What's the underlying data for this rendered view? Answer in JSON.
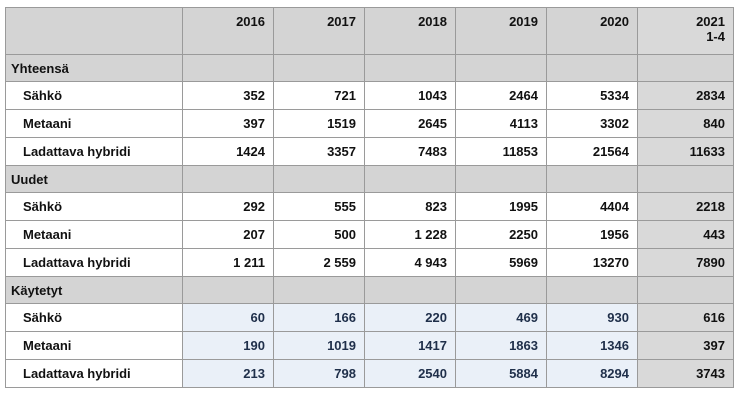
{
  "header": {
    "years": [
      "2016",
      "2017",
      "2018",
      "2019",
      "2020"
    ],
    "last_year": "2021",
    "last_period": "1-4"
  },
  "sections": [
    {
      "title": "Yhteensä",
      "rows": [
        {
          "label": "Sähkö",
          "values": [
            "352",
            "721",
            "1043",
            "2464",
            "5334"
          ],
          "last": "2834"
        },
        {
          "label": "Metaani",
          "values": [
            "397",
            "1519",
            "2645",
            "4113",
            "3302"
          ],
          "last": "840"
        },
        {
          "label": "Ladattava hybridi",
          "values": [
            "1424",
            "3357",
            "7483",
            "11853",
            "21564"
          ],
          "last": "11633"
        }
      ]
    },
    {
      "title": "Uudet",
      "rows": [
        {
          "label": "Sähkö",
          "values": [
            "292",
            "555",
            "823",
            "1995",
            "4404"
          ],
          "last": "2218"
        },
        {
          "label": "Metaani",
          "values": [
            "207",
            "500",
            "1 228",
            "2250",
            "1956"
          ],
          "last": "443"
        },
        {
          "label": "Ladattava hybridi",
          "values": [
            "1 211",
            "2 559",
            "4 943",
            "5969",
            "13270"
          ],
          "last": "7890"
        }
      ]
    },
    {
      "title": "Käytetyt",
      "rows": [
        {
          "label": "Sähkö",
          "values": [
            "60",
            "166",
            "220",
            "469",
            "930"
          ],
          "last": "616"
        },
        {
          "label": "Metaani",
          "values": [
            "190",
            "1019",
            "1417",
            "1863",
            "1346"
          ],
          "last": "397"
        },
        {
          "label": "Ladattava hybridi",
          "values": [
            "213",
            "798",
            "2540",
            "5884",
            "8294"
          ],
          "last": "3743"
        }
      ]
    }
  ]
}
